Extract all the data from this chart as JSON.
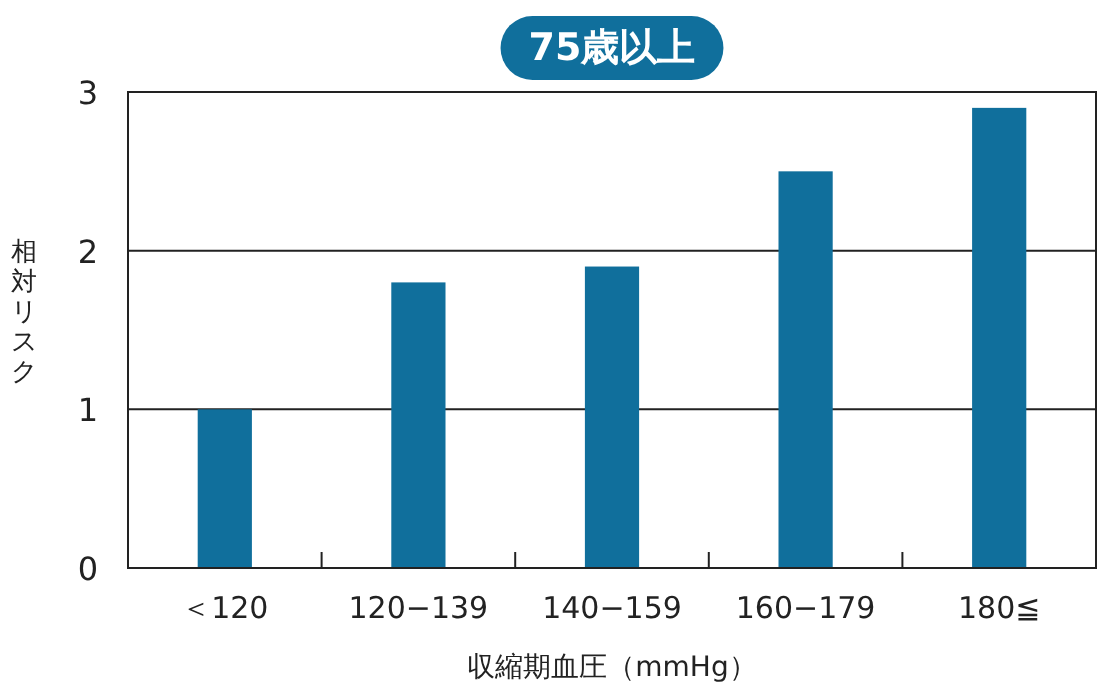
{
  "chart_data": {
    "type": "bar",
    "title": "75歳以上",
    "xlabel": "収縮期血圧（mmHg）",
    "ylabel": "相対リスク",
    "categories": [
      "＜120",
      "120−139",
      "140−159",
      "160−179",
      "180≦"
    ],
    "values": [
      1.0,
      1.8,
      1.9,
      2.5,
      2.9
    ],
    "color": "#106f9c",
    "ylim": [
      0,
      3
    ],
    "yticks": [
      0,
      1,
      2,
      3
    ],
    "grid": "y"
  }
}
